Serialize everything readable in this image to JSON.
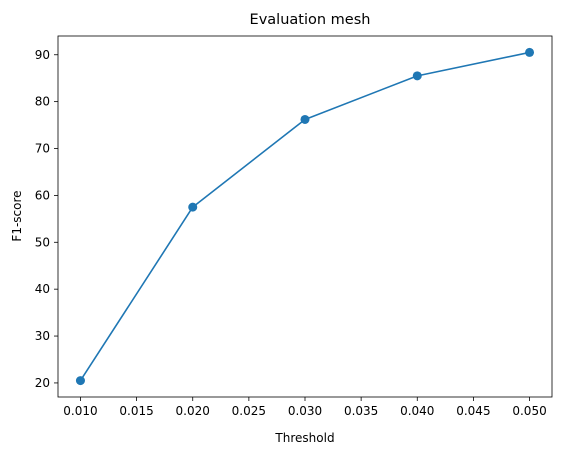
{
  "chart_data": {
    "type": "line",
    "title": "Evaluation mesh",
    "xlabel": "Threshold",
    "ylabel": "F1-score",
    "x": [
      0.01,
      0.02,
      0.03,
      0.04,
      0.05
    ],
    "series": [
      {
        "values": [
          20.5,
          57.5,
          76.2,
          85.5,
          90.5
        ],
        "color": "#1f77b4",
        "marker": "circle"
      }
    ],
    "xlim": [
      0.008,
      0.052
    ],
    "ylim": [
      17.0,
      94.0
    ],
    "xticks": [
      "0.010",
      "0.015",
      "0.020",
      "0.025",
      "0.030",
      "0.035",
      "0.040",
      "0.045",
      "0.050"
    ],
    "yticks": [
      "20",
      "30",
      "40",
      "50",
      "60",
      "70",
      "80",
      "90"
    ],
    "grid": false,
    "legend": "none"
  }
}
